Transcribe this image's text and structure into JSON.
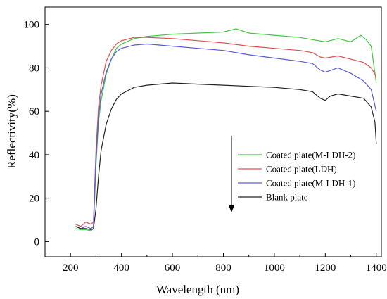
{
  "chart_data": {
    "type": "line",
    "title": "",
    "xlabel": "Wavelength (nm)",
    "ylabel": "Reflectivity(%)",
    "xlim": [
      100,
      1420
    ],
    "ylim": [
      -7,
      108
    ],
    "xticks": [
      200,
      400,
      600,
      800,
      1000,
      1200,
      1400
    ],
    "yticks": [
      0,
      20,
      40,
      60,
      80,
      100
    ],
    "grid": false,
    "legend_position": "center-right",
    "series": [
      {
        "name": "Coated plate(M-LDH-2)",
        "color": "#3ec93e",
        "x": [
          220,
          240,
          260,
          280,
          290,
          300,
          310,
          320,
          340,
          360,
          380,
          400,
          450,
          500,
          600,
          700,
          800,
          850,
          900,
          1000,
          1100,
          1150,
          1200,
          1250,
          1300,
          1340,
          1360,
          1380,
          1400
        ],
        "y": [
          6,
          5.5,
          5.5,
          5,
          6,
          35,
          55,
          65,
          77,
          84,
          89,
          91,
          93.5,
          94.5,
          95.5,
          96,
          96.5,
          98,
          96,
          95,
          94,
          93,
          92,
          93.5,
          92,
          95,
          93,
          90,
          73
        ]
      },
      {
        "name": "Coated plate(LDH)",
        "color": "#e05050",
        "x": [
          220,
          240,
          260,
          280,
          290,
          300,
          310,
          320,
          340,
          360,
          380,
          400,
          450,
          500,
          600,
          700,
          800,
          900,
          1000,
          1100,
          1150,
          1180,
          1200,
          1250,
          1300,
          1350,
          1380,
          1400
        ],
        "y": [
          8,
          7,
          9,
          8,
          9,
          42,
          62,
          72,
          83,
          88,
          91,
          92.5,
          94,
          94,
          93.5,
          92.5,
          91.5,
          90,
          89,
          88,
          87,
          85,
          84.5,
          85.5,
          84,
          82.5,
          80,
          76
        ]
      },
      {
        "name": "Coated plate(M-LDH-1)",
        "color": "#5a5ad6",
        "x": [
          220,
          240,
          260,
          280,
          290,
          300,
          310,
          320,
          340,
          360,
          380,
          400,
          450,
          500,
          600,
          700,
          800,
          900,
          1000,
          1100,
          1150,
          1180,
          1200,
          1250,
          1300,
          1350,
          1380,
          1400
        ],
        "y": [
          7,
          6,
          7,
          6,
          7,
          38,
          58,
          68,
          78,
          84,
          87.5,
          89,
          90.5,
          91,
          90,
          89,
          88,
          86,
          84.5,
          83,
          82,
          79,
          78,
          80,
          77.5,
          74,
          70,
          60
        ]
      },
      {
        "name": "Blank plate",
        "color": "#222222",
        "x": [
          220,
          240,
          260,
          280,
          290,
          300,
          310,
          320,
          340,
          360,
          380,
          400,
          450,
          500,
          600,
          700,
          800,
          900,
          1000,
          1100,
          1150,
          1180,
          1200,
          1220,
          1250,
          1300,
          1350,
          1380,
          1395,
          1400
        ],
        "y": [
          7,
          6,
          6,
          5.5,
          6,
          15,
          30,
          42,
          54,
          61,
          65.5,
          68,
          71,
          72,
          73,
          72.5,
          72,
          71.5,
          71,
          70,
          69,
          66,
          65,
          67,
          68,
          67,
          66,
          62,
          55,
          45
        ]
      }
    ],
    "annotations": [
      {
        "type": "arrow",
        "direction": "down",
        "meaning": "legend order indicates decreasing reflectivity"
      }
    ]
  }
}
